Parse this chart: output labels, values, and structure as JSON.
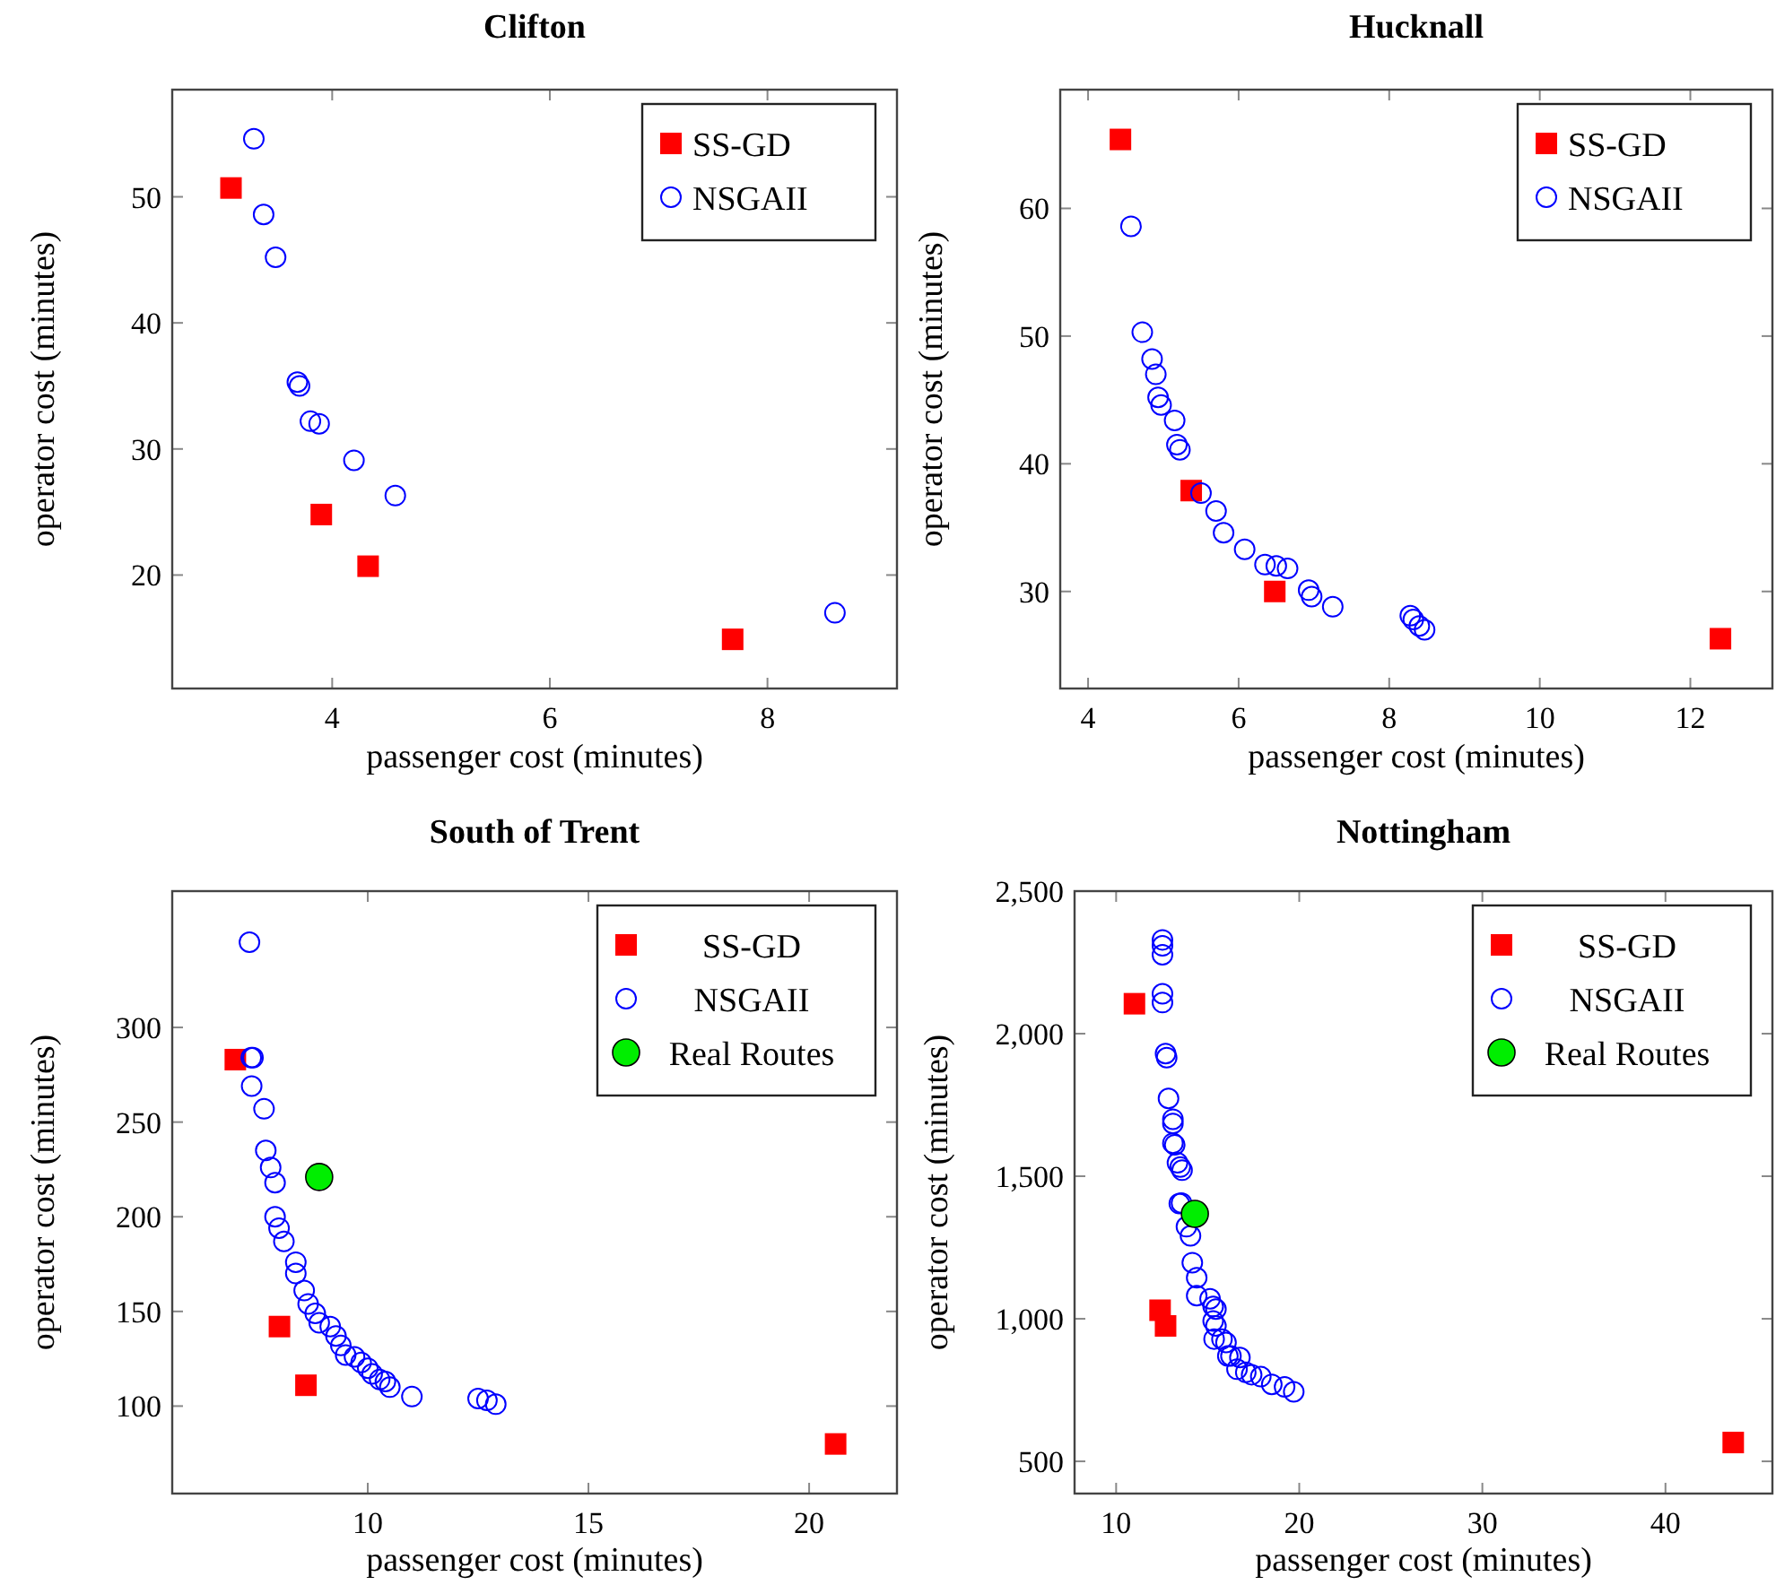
{
  "chart_data": [
    {
      "type": "scatter",
      "title": "Clifton",
      "xlabel": "passenger cost (minutes)",
      "ylabel": "operator cost (minutes)",
      "xlim": [
        2.53,
        9.19
      ],
      "ylim": [
        11,
        58.5
      ],
      "xticks": [
        4,
        6,
        8
      ],
      "yticks": [
        20,
        30,
        40,
        50
      ],
      "legend": "top right",
      "series": [
        {
          "name": "SS-GD",
          "color": "#ff0000",
          "marker": "square",
          "x": [
            3.07,
            3.9,
            4.33,
            7.68
          ],
          "values": [
            50.7,
            24.8,
            20.7,
            14.9
          ]
        },
        {
          "name": "NSGAII",
          "color": "#0000ff",
          "marker": "circle",
          "x": [
            3.28,
            3.37,
            3.48,
            3.68,
            3.7,
            3.8,
            3.88,
            4.2,
            4.58,
            8.62
          ],
          "values": [
            54.6,
            48.6,
            45.2,
            35.3,
            35.0,
            32.2,
            32.0,
            29.1,
            26.3,
            17.0
          ]
        }
      ]
    },
    {
      "type": "scatter",
      "title": "Hucknall",
      "xlabel": "passenger cost (minutes)",
      "ylabel": "operator cost (minutes)",
      "xlim": [
        3.63,
        13.09
      ],
      "ylim": [
        22.4,
        69.3
      ],
      "xticks": [
        4,
        6,
        8,
        10,
        12
      ],
      "yticks": [
        30,
        40,
        50,
        60
      ],
      "legend": "top right",
      "series": [
        {
          "name": "SS-GD",
          "color": "#ff0000",
          "marker": "square",
          "x": [
            4.43,
            5.37,
            6.48,
            12.4
          ],
          "values": [
            65.4,
            37.9,
            30.0,
            26.3
          ]
        },
        {
          "name": "NSGAII",
          "color": "#0000ff",
          "marker": "circle",
          "x": [
            4.57,
            4.72,
            4.85,
            4.9,
            4.93,
            4.97,
            5.15,
            5.18,
            5.22,
            5.5,
            5.7,
            5.8,
            6.08,
            6.35,
            6.5,
            6.65,
            6.93,
            6.97,
            7.25,
            8.28,
            8.32,
            8.4,
            8.47
          ],
          "values": [
            58.6,
            50.3,
            48.2,
            47.0,
            45.2,
            44.6,
            43.4,
            41.5,
            41.1,
            37.7,
            36.3,
            34.6,
            33.3,
            32.1,
            32.0,
            31.8,
            30.1,
            29.6,
            28.8,
            28.1,
            27.8,
            27.3,
            27.0
          ]
        }
      ]
    },
    {
      "type": "scatter",
      "title": "South of Trent",
      "xlabel": "passenger cost (minutes)",
      "ylabel": "operator cost (minutes)",
      "xlim": [
        5.57,
        21.99
      ],
      "ylim": [
        53.8,
        372
      ],
      "xticks": [
        10,
        15,
        20
      ],
      "yticks": [
        100,
        150,
        200,
        250,
        300
      ],
      "legend": "top right",
      "series": [
        {
          "name": "SS-GD",
          "color": "#ff0000",
          "marker": "square",
          "x": [
            7.0,
            8.0,
            8.6,
            20.6
          ],
          "values": [
            283,
            142,
            111,
            80
          ]
        },
        {
          "name": "NSGAII",
          "color": "#0000ff",
          "marker": "circle",
          "x": [
            7.32,
            7.36,
            7.4,
            7.37,
            7.65,
            7.69,
            7.8,
            7.9,
            7.9,
            7.99,
            8.1,
            8.37,
            8.37,
            8.56,
            8.65,
            8.81,
            8.9,
            9.15,
            9.28,
            9.39,
            9.5,
            9.7,
            9.85,
            10.0,
            10.1,
            10.27,
            10.4,
            10.5,
            11.0,
            12.5,
            12.7,
            12.9
          ],
          "values": [
            345,
            284,
            284,
            269,
            257,
            235,
            226,
            218,
            200,
            194,
            187,
            176,
            170,
            161,
            154,
            149,
            144,
            142,
            137,
            132,
            127,
            126,
            123,
            120,
            117,
            114,
            113,
            110,
            105,
            104,
            103,
            101
          ]
        },
        {
          "name": "Real Routes",
          "color": "#00ee00",
          "marker": "circle",
          "x": [
            8.9
          ],
          "values": [
            221
          ]
        }
      ]
    },
    {
      "type": "scatter",
      "title": "Nottingham",
      "xlabel": "passenger cost (minutes)",
      "ylabel": "operator cost (minutes)",
      "xlim": [
        7.73,
        45.84
      ],
      "ylim": [
        387,
        2500
      ],
      "xticks": [
        10,
        20,
        30,
        40
      ],
      "yticks": [
        {
          "value": 500,
          "label": "500"
        },
        {
          "value": 1000,
          "label": "1,000"
        },
        {
          "value": 1500,
          "label": "1,500"
        },
        {
          "value": 2000,
          "label": "2,000"
        },
        {
          "value": 2500,
          "label": "2,500"
        }
      ],
      "legend": "top right",
      "series": [
        {
          "name": "SS-GD",
          "color": "#ff0000",
          "marker": "square",
          "x": [
            11.0,
            12.4,
            12.7,
            43.7
          ],
          "values": [
            2105,
            1030,
            975,
            566
          ]
        },
        {
          "name": "NSGAII",
          "color": "#0000ff",
          "marker": "circle",
          "x": [
            12.53,
            12.53,
            12.53,
            12.53,
            12.53,
            12.7,
            12.76,
            12.86,
            13.1,
            13.1,
            13.1,
            13.2,
            13.35,
            13.5,
            13.6,
            13.57,
            13.45,
            13.84,
            14.06,
            14.16,
            14.4,
            14.4,
            15.13,
            15.3,
            15.45,
            15.3,
            15.45,
            15.35,
            15.78,
            16.0,
            16.1,
            16.27,
            16.76,
            16.6,
            17.08,
            17.4,
            17.9,
            18.5,
            19.2,
            19.7
          ],
          "values": [
            2329,
            2308,
            2277,
            2140,
            2109,
            1930,
            1916,
            1773,
            1700,
            1685,
            1616,
            1610,
            1547,
            1532,
            1521,
            1406,
            1404,
            1323,
            1291,
            1197,
            1144,
            1081,
            1070,
            1043,
            1034,
            992,
            975,
            929,
            929,
            917,
            870,
            870,
            864,
            823,
            812,
            804,
            797,
            770,
            761,
            744
          ]
        },
        {
          "name": "Real Routes",
          "color": "#00ee00",
          "marker": "circle",
          "x": [
            14.3
          ],
          "values": [
            1368
          ]
        }
      ]
    }
  ]
}
